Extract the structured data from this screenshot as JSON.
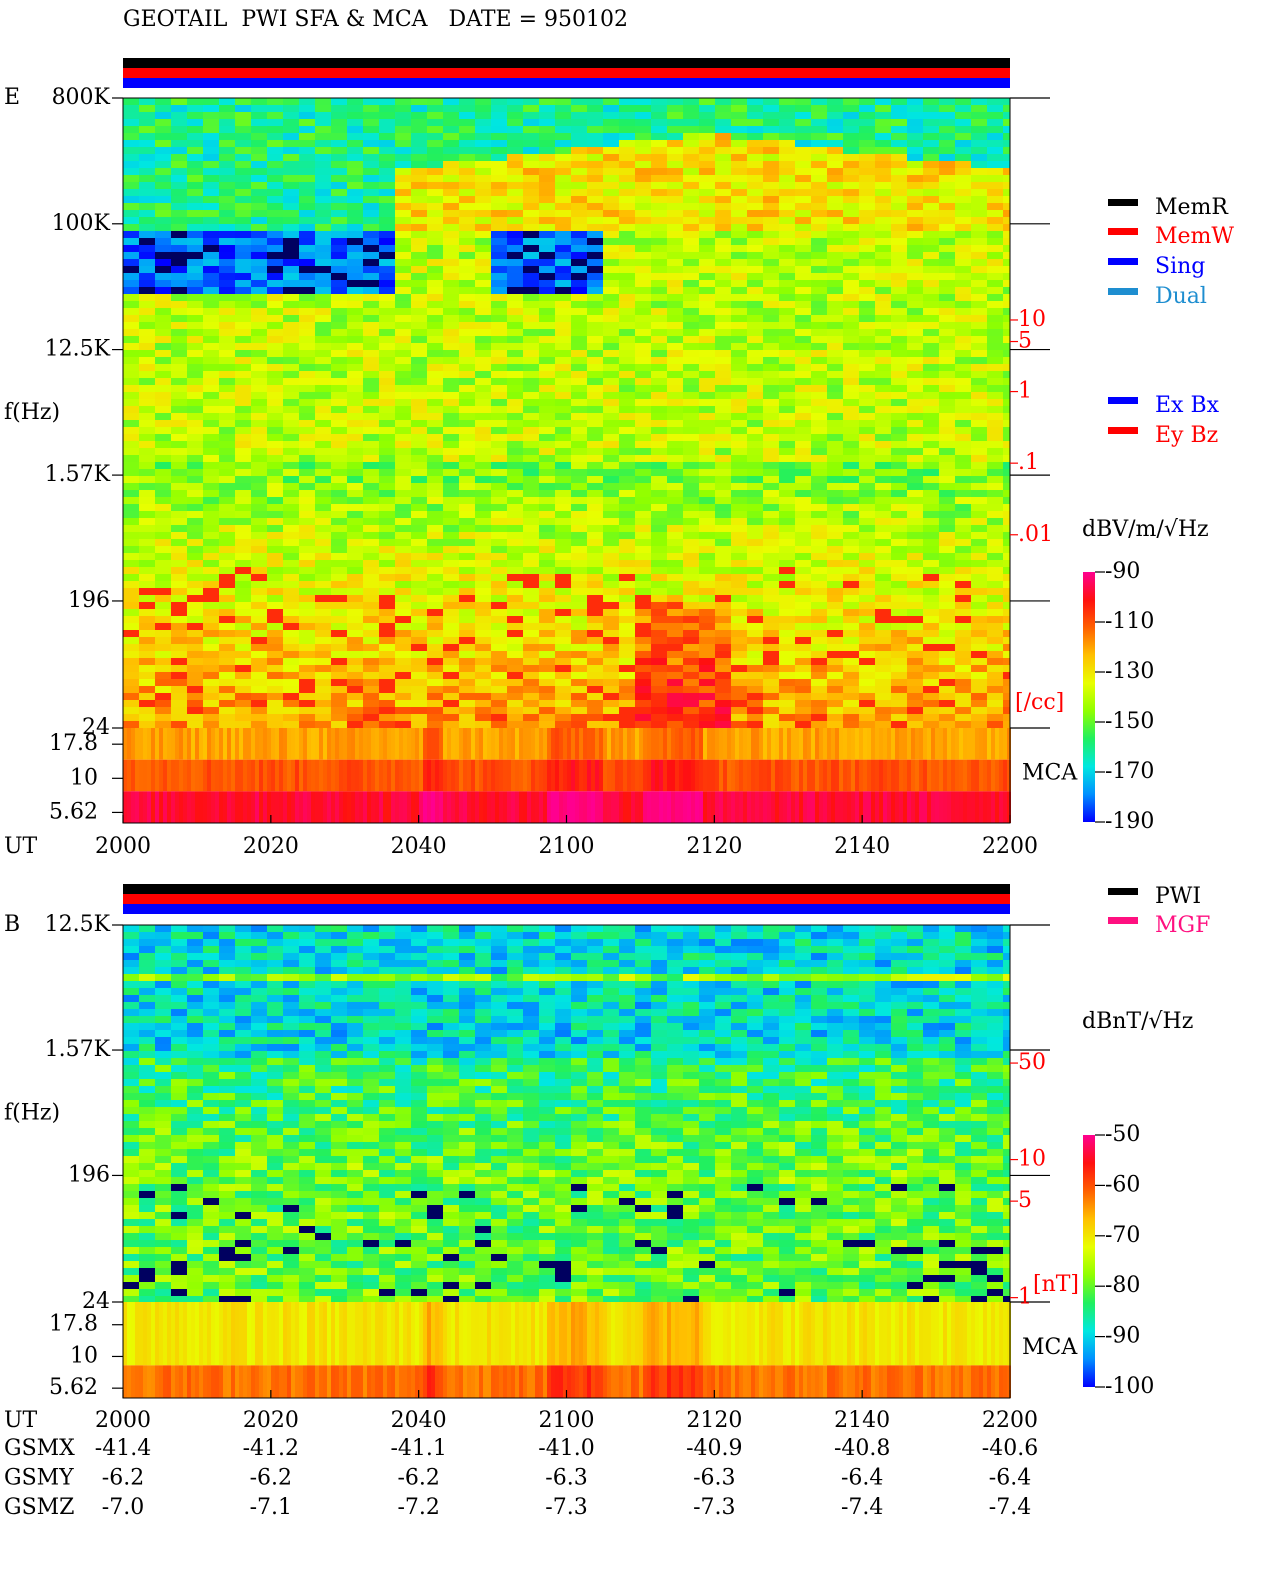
{
  "title": "GEOTAIL  PWI SFA & MCA   DATE = 950102",
  "chart_data": [
    {
      "type": "spectrogram",
      "panel_label": "E",
      "y_label": "f(Hz)",
      "x_label": "UT",
      "categories": [
        "2000",
        "2020",
        "2040",
        "2100",
        "2120",
        "2140",
        "2200"
      ],
      "log_scale": true,
      "ylim": [
        24,
        800000
      ],
      "yticks": [
        {
          "value": 800000,
          "label": "800K"
        },
        {
          "value": 100000,
          "label": "100K"
        },
        {
          "value": 12500,
          "label": "12.5K"
        },
        {
          "value": 1570,
          "label": "1.57K"
        },
        196,
        24
      ],
      "mca_label": "MCA",
      "mca_ylim": [
        4.7,
        23.4
      ],
      "mca_yticks": [
        17.8,
        10,
        5.62
      ],
      "y2_label": "[/cc]",
      "y2lim": [
        12600,
        2e-05
      ],
      "y2ticks": [
        10,
        5,
        1,
        {
          "value": 0.1,
          "label": ".1"
        },
        {
          "value": 0.01,
          "label": ".01"
        }
      ],
      "y2_color": "#ff0000",
      "colorbar": {
        "label": "dBV/m/√Hz",
        "lim": [
          -190,
          -90
        ],
        "ticks": [
          -90,
          -110,
          -130,
          -150,
          -170,
          -190
        ]
      },
      "legends": [
        [
          {
            "name": "MemR",
            "color": "#000000"
          },
          {
            "name": "MemW",
            "color": "#ff0000"
          },
          {
            "name": "Sing",
            "color": "#0000ff"
          },
          {
            "name": "Dual",
            "color": "#1e8ed0"
          }
        ],
        [
          {
            "name": "Ex Bx",
            "color": "#0000ff"
          },
          {
            "name": "Ey Bz",
            "color": "#ff0000"
          }
        ]
      ]
    },
    {
      "type": "spectrogram",
      "panel_label": "B",
      "y_label": "f(Hz)",
      "x_label": "UT",
      "categories": [
        "2000",
        "2020",
        "2040",
        "2100",
        "2120",
        "2140",
        "2200"
      ],
      "log_scale": true,
      "ylim": [
        24,
        12500
      ],
      "yticks": [
        {
          "value": 12500,
          "label": "12.5K"
        },
        {
          "value": 1570,
          "label": "1.57K"
        },
        196,
        24
      ],
      "mca_label": "MCA",
      "mca_ylim": [
        4.7,
        26.9
      ],
      "mca_yticks": [
        17.8,
        10,
        5.62
      ],
      "y2_label": "[nT]",
      "y2lim": [
        500,
        0.93
      ],
      "y2ticks": [
        50,
        10,
        5,
        1
      ],
      "y2_color": "#ff0000",
      "colorbar": {
        "label": "dBnT/√Hz",
        "lim": [
          -100,
          -50
        ],
        "ticks": [
          -50,
          -60,
          -70,
          -80,
          -90,
          -100
        ]
      },
      "legends": [
        [
          {
            "name": "PWI",
            "color": "#000000"
          },
          {
            "name": "MGF",
            "color": "#ff1080"
          }
        ]
      ]
    }
  ],
  "orbit": {
    "labels": [
      "GSMX",
      "GSMY",
      "GSMZ"
    ],
    "rows": [
      [
        "-41.4",
        "-41.2",
        "-41.1",
        "-41.0",
        "-40.9",
        "-40.8",
        "-40.6"
      ],
      [
        "-6.2",
        "-6.2",
        "-6.2",
        "-6.3",
        "-6.3",
        "-6.4",
        "-6.4"
      ],
      [
        "-7.0",
        "-7.1",
        "-7.2",
        "-7.3",
        "-7.3",
        "-7.4",
        "-7.4"
      ]
    ]
  }
}
